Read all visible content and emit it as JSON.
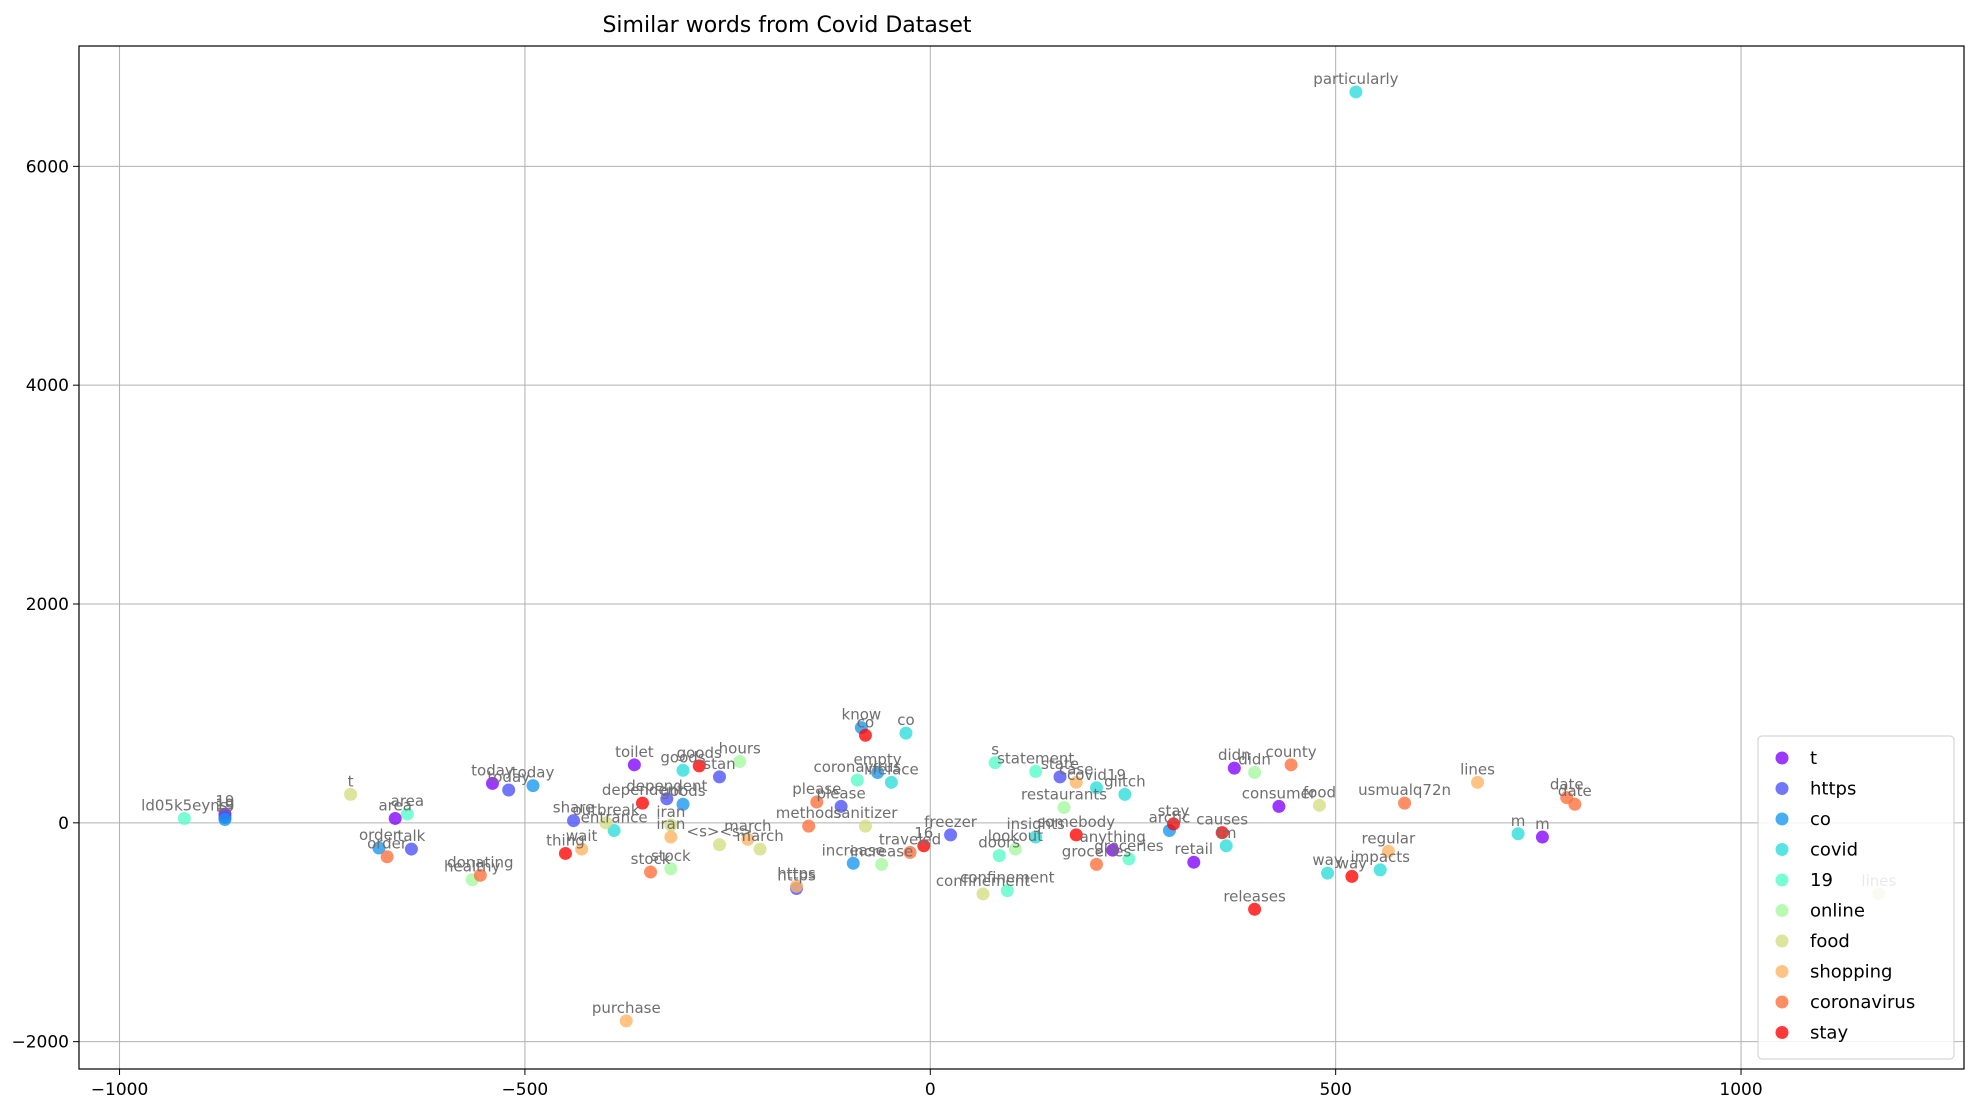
{
  "chart_data": {
    "type": "scatter",
    "title": "Similar words from Covid Dataset",
    "xlabel": "",
    "ylabel": "",
    "xlim": [
      -1050,
      1275
    ],
    "ylim": [
      -2250,
      7100
    ],
    "x_ticks": [
      -1000,
      -500,
      0,
      500,
      1000
    ],
    "y_ticks": [
      -2000,
      0,
      2000,
      4000,
      6000
    ],
    "grid": true,
    "legend_position": "lower-right",
    "series": [
      {
        "name": "t",
        "color": "#8000ff",
        "points": [
          {
            "x": -870,
            "y": 80,
            "label": "19"
          },
          {
            "x": -660,
            "y": 40,
            "label": "area"
          },
          {
            "x": -540,
            "y": 360,
            "label": "today"
          },
          {
            "x": -365,
            "y": 530,
            "label": "toilet"
          },
          {
            "x": 375,
            "y": 500,
            "label": "didn"
          },
          {
            "x": 430,
            "y": 150,
            "label": "consumer"
          },
          {
            "x": 755,
            "y": -130,
            "label": "m"
          },
          {
            "x": 325,
            "y": -360,
            "label": "retail"
          },
          {
            "x": 225,
            "y": -250,
            "label": "anything"
          }
        ]
      },
      {
        "name": "https",
        "color": "#4a50f9",
        "points": [
          {
            "x": -870,
            "y": 50,
            "label": "19"
          },
          {
            "x": -520,
            "y": 300,
            "label": "today"
          },
          {
            "x": -640,
            "y": -240,
            "label": "talk"
          },
          {
            "x": -440,
            "y": 20,
            "label": "share"
          },
          {
            "x": -325,
            "y": 220,
            "label": "dependent"
          },
          {
            "x": -260,
            "y": 420,
            "label": "stan"
          },
          {
            "x": -110,
            "y": 150,
            "label": "please"
          },
          {
            "x": 25,
            "y": -110,
            "label": "freezer"
          },
          {
            "x": 160,
            "y": 420,
            "label": "state"
          },
          {
            "x": -165,
            "y": -600,
            "label": "https"
          }
        ]
      },
      {
        "name": "co",
        "color": "#1596ed",
        "points": [
          {
            "x": -870,
            "y": 30,
            "label": "19"
          },
          {
            "x": -680,
            "y": -230,
            "label": "order"
          },
          {
            "x": -490,
            "y": 340,
            "label": "today"
          },
          {
            "x": -305,
            "y": 170,
            "label": "goods"
          },
          {
            "x": -85,
            "y": 870,
            "label": "know"
          },
          {
            "x": -65,
            "y": 460,
            "label": "empty"
          },
          {
            "x": -95,
            "y": -370,
            "label": "increase"
          },
          {
            "x": 295,
            "y": -70,
            "label": "arctic"
          }
        ]
      },
      {
        "name": "covid",
        "color": "#2adddd",
        "points": [
          {
            "x": -305,
            "y": 480,
            "label": "goods"
          },
          {
            "x": -48,
            "y": 370,
            "label": "lifeface"
          },
          {
            "x": -30,
            "y": 820,
            "label": "co"
          },
          {
            "x": -390,
            "y": -70,
            "label": "entrance"
          },
          {
            "x": 205,
            "y": 320,
            "label": "covid19"
          },
          {
            "x": 240,
            "y": 260,
            "label": "glitch"
          },
          {
            "x": 365,
            "y": -210,
            "label": "tm"
          },
          {
            "x": 525,
            "y": 6680,
            "label": "particularly"
          },
          {
            "x": 490,
            "y": -460,
            "label": "way"
          },
          {
            "x": 725,
            "y": -100,
            "label": "m"
          },
          {
            "x": 555,
            "y": -430,
            "label": "impacts"
          },
          {
            "x": 130,
            "y": -130,
            "label": "insights"
          }
        ]
      },
      {
        "name": "19",
        "color": "#54fdc9",
        "points": [
          {
            "x": -920,
            "y": 40,
            "label": "ld05k5eyns"
          },
          {
            "x": -645,
            "y": 80,
            "label": "area"
          },
          {
            "x": 80,
            "y": 550,
            "label": "s"
          },
          {
            "x": 130,
            "y": 470,
            "label": "statement"
          },
          {
            "x": 85,
            "y": -300,
            "label": "doors"
          },
          {
            "x": 95,
            "y": -620,
            "label": "confinement"
          },
          {
            "x": 245,
            "y": -330,
            "label": "groceries"
          },
          {
            "x": -90,
            "y": 390,
            "label": "coronavirus"
          }
        ]
      },
      {
        "name": "online",
        "color": "#a4f89f",
        "points": [
          {
            "x": -235,
            "y": 560,
            "label": "hours"
          },
          {
            "x": -565,
            "y": -520,
            "label": "healthy"
          },
          {
            "x": -320,
            "y": -420,
            "label": "stock"
          },
          {
            "x": -60,
            "y": -380,
            "label": "increase"
          },
          {
            "x": 105,
            "y": -240,
            "label": "lookout"
          },
          {
            "x": 400,
            "y": 460,
            "label": "didn"
          },
          {
            "x": 165,
            "y": 140,
            "label": "restaurants"
          }
        ]
      },
      {
        "name": "food",
        "color": "#d4dd80",
        "points": [
          {
            "x": -715,
            "y": 260,
            "label": "t"
          },
          {
            "x": -400,
            "y": 0,
            "label": "outbreak"
          },
          {
            "x": -320,
            "y": -20,
            "label": "iran"
          },
          {
            "x": -260,
            "y": -200,
            "label": "<s><s>"
          },
          {
            "x": -210,
            "y": -240,
            "label": "march"
          },
          {
            "x": -80,
            "y": -30,
            "label": "sanitizer"
          },
          {
            "x": 65,
            "y": -650,
            "label": "confinement"
          },
          {
            "x": 480,
            "y": 160,
            "label": "food"
          },
          {
            "x": 1170,
            "y": -650,
            "label": "lines"
          }
        ]
      },
      {
        "name": "shopping",
        "color": "#ffb360",
        "points": [
          {
            "x": -375,
            "y": -1810,
            "label": "purchase"
          },
          {
            "x": -430,
            "y": -240,
            "label": "wait"
          },
          {
            "x": -320,
            "y": -130,
            "label": "iran"
          },
          {
            "x": -225,
            "y": -150,
            "label": "march"
          },
          {
            "x": 180,
            "y": 370,
            "label": "case"
          },
          {
            "x": 565,
            "y": -260,
            "label": "regular"
          },
          {
            "x": 675,
            "y": 370,
            "label": "lines"
          },
          {
            "x": -165,
            "y": -580,
            "label": "https"
          }
        ]
      },
      {
        "name": "coronavirus",
        "color": "#ff6e3a",
        "points": [
          {
            "x": -670,
            "y": -310,
            "label": "order"
          },
          {
            "x": -555,
            "y": -480,
            "label": "donating"
          },
          {
            "x": -345,
            "y": -450,
            "label": "stock"
          },
          {
            "x": -150,
            "y": -30,
            "label": "methods"
          },
          {
            "x": -140,
            "y": 190,
            "label": "please"
          },
          {
            "x": -25,
            "y": -270,
            "label": "traveled"
          },
          {
            "x": 205,
            "y": -380,
            "label": "groceries"
          },
          {
            "x": 445,
            "y": 530,
            "label": "county"
          },
          {
            "x": 585,
            "y": 180,
            "label": "usmualq72n"
          },
          {
            "x": 785,
            "y": 230,
            "label": "date"
          },
          {
            "x": 795,
            "y": 170,
            "label": "date"
          }
        ]
      },
      {
        "name": "stay",
        "color": "#ff0000",
        "points": [
          {
            "x": -355,
            "y": 180,
            "label": "dependent"
          },
          {
            "x": -285,
            "y": 520,
            "label": "goods"
          },
          {
            "x": -80,
            "y": 800,
            "label": "co"
          },
          {
            "x": -450,
            "y": -280,
            "label": "thing"
          },
          {
            "x": -8,
            "y": -210,
            "label": "16"
          },
          {
            "x": 180,
            "y": -110,
            "label": "somebody"
          },
          {
            "x": 300,
            "y": -10,
            "label": "stay"
          },
          {
            "x": 360,
            "y": -90,
            "label": "causes"
          },
          {
            "x": 400,
            "y": -790,
            "label": "releases"
          },
          {
            "x": 520,
            "y": -490,
            "label": "way"
          }
        ]
      }
    ]
  }
}
